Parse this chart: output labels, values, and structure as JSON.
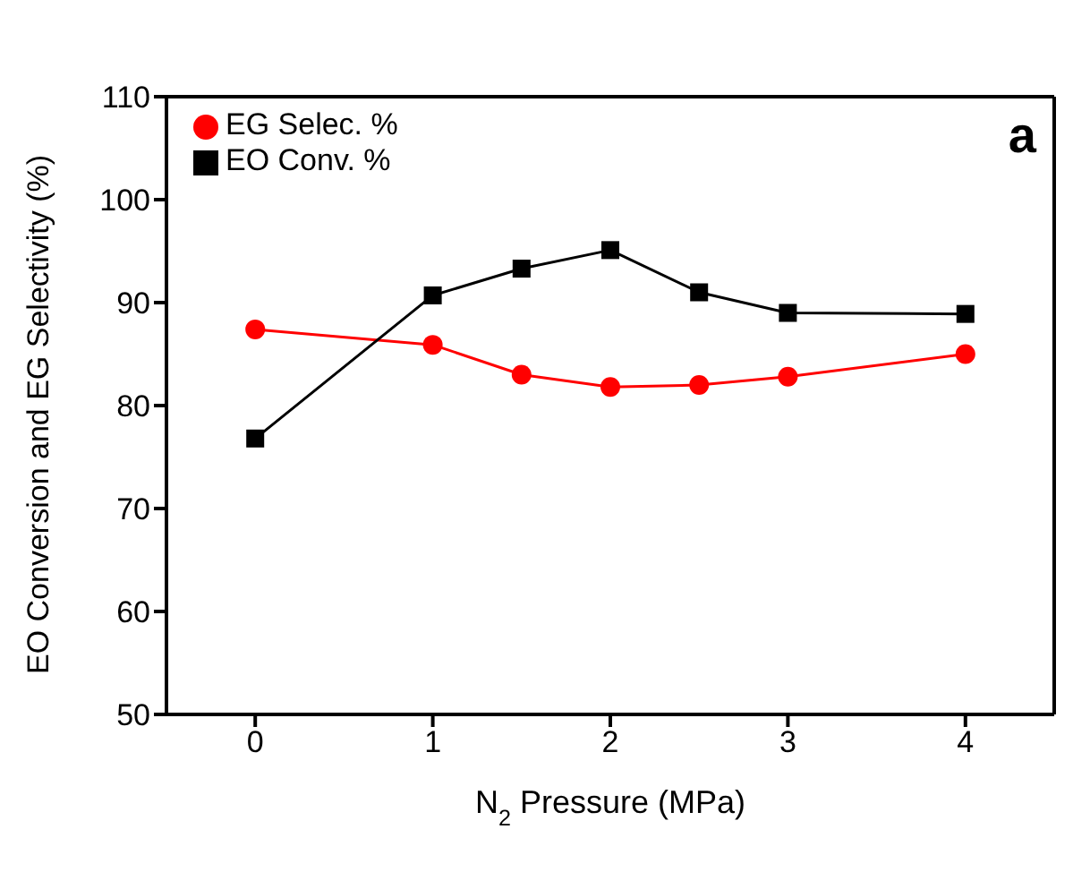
{
  "chart_data": {
    "type": "line",
    "xlabel": "N$_{2}$ Pressure (MPa)",
    "ylabel": "EO Conversion and EG Selectivity (%)",
    "x": [
      0,
      1,
      1.5,
      2,
      2.5,
      3,
      4
    ],
    "series": [
      {
        "name": "EG Selec. %",
        "color": "#ff0000",
        "marker": "circle",
        "values": [
          87.4,
          85.9,
          83.0,
          81.8,
          82.0,
          82.8,
          85.0
        ]
      },
      {
        "name": "EO Conv. %",
        "color": "#000000",
        "marker": "square",
        "values": [
          76.8,
          90.7,
          93.3,
          95.1,
          91.0,
          89.0,
          88.9
        ]
      }
    ],
    "xlim": [
      -0.5,
      4.5
    ],
    "xticks": [
      0,
      1,
      2,
      3,
      4
    ],
    "ylim": [
      50,
      110
    ],
    "yticks": [
      50,
      60,
      70,
      80,
      90,
      100,
      110
    ],
    "grid": false,
    "legend": "top left",
    "line_style": "solid",
    "annotations": [
      "a"
    ]
  }
}
